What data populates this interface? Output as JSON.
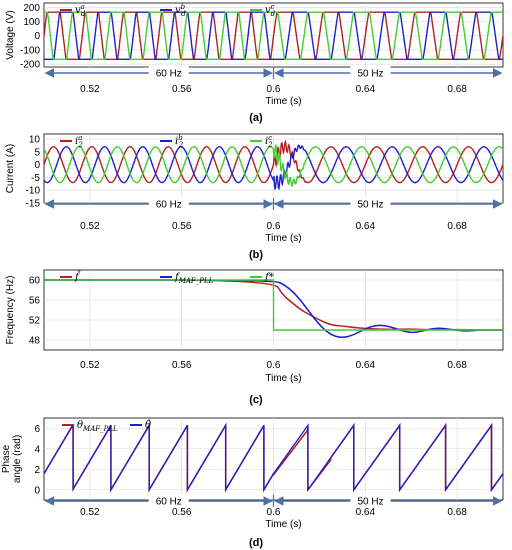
{
  "colors": {
    "phase_a": "#b22222",
    "phase_b": "#1f1fd0",
    "phase_c": "#3fcf2f",
    "arrow": "#4f6fa8",
    "grid": "#d9d9d9"
  },
  "chart_data": [
    {
      "type": "line",
      "panel_label": "(a)",
      "xlabel": "Time (s)",
      "ylabel": "Voltage (V)",
      "xlim": [
        0.5,
        0.7
      ],
      "ylim": [
        -220,
        230
      ],
      "xticks": [
        0.52,
        0.56,
        0.6,
        0.64,
        0.68
      ],
      "xtick_labels": [
        "0.52",
        "0.56",
        "0.6",
        "0.64",
        "0.68"
      ],
      "yticks": [
        -200,
        -100,
        0,
        100,
        200
      ],
      "ytick_labels": [
        "-200",
        "-100",
        "0",
        "100",
        "200"
      ],
      "grid": true,
      "legend_position": "top",
      "series": [
        {
          "name": "v_d^a",
          "color_key": "phase_a",
          "amplitude": 180,
          "phase_deg": 0,
          "waveform": "trapezoidal"
        },
        {
          "name": "v_d^b",
          "color_key": "phase_b",
          "amplitude": 180,
          "phase_deg": -120,
          "waveform": "trapezoidal"
        },
        {
          "name": "v_d^c",
          "color_key": "phase_c",
          "amplitude": 180,
          "phase_deg": 120,
          "waveform": "trapezoidal"
        }
      ],
      "frequency_step": {
        "t_switch": 0.6,
        "f_before": 60,
        "f_after": 50
      },
      "regions": [
        {
          "label": "60 Hz",
          "x_start": 0.5,
          "x_end": 0.6
        },
        {
          "label": "50 Hz",
          "x_start": 0.6,
          "x_end": 0.7
        }
      ]
    },
    {
      "type": "line",
      "panel_label": "(b)",
      "xlabel": "Time (s)",
      "ylabel": "Current (A)",
      "xlim": [
        0.5,
        0.7
      ],
      "ylim": [
        -15,
        12
      ],
      "xticks": [
        0.52,
        0.56,
        0.6,
        0.64,
        0.68
      ],
      "xtick_labels": [
        "0.52",
        "0.56",
        "0.6",
        "0.64",
        "0.68"
      ],
      "yticks": [
        -15,
        -10,
        -5,
        0,
        5,
        10
      ],
      "ytick_labels": [
        "-15",
        "-10",
        "-5",
        "0",
        "5",
        "10"
      ],
      "grid": true,
      "legend_position": "top",
      "series": [
        {
          "name": "i_2^a",
          "color_key": "phase_a",
          "amplitude": 7,
          "phase_deg": 0,
          "waveform": "sine"
        },
        {
          "name": "i_2^b",
          "color_key": "phase_b",
          "amplitude": 7,
          "phase_deg": -120,
          "waveform": "sine"
        },
        {
          "name": "i_2^c",
          "color_key": "phase_c",
          "amplitude": 7,
          "phase_deg": 120,
          "waveform": "sine"
        }
      ],
      "frequency_step": {
        "t_switch": 0.6,
        "f_before": 60,
        "f_after": 50
      },
      "transient": {
        "t_start": 0.6,
        "t_end": 0.615,
        "peak_amplitude": 10
      },
      "regions": [
        {
          "label": "60 Hz",
          "x_start": 0.5,
          "x_end": 0.6
        },
        {
          "label": "50 Hz",
          "x_start": 0.6,
          "x_end": 0.7
        }
      ]
    },
    {
      "type": "line",
      "panel_label": "(c)",
      "xlabel": "Time (s)",
      "ylabel": "Frequency (Hz)",
      "xlim": [
        0.5,
        0.7
      ],
      "ylim": [
        46,
        62
      ],
      "xticks": [
        0.52,
        0.56,
        0.6,
        0.64,
        0.68
      ],
      "xtick_labels": [
        "0.52",
        "0.56",
        "0.6",
        "0.64",
        "0.68"
      ],
      "yticks": [
        48,
        52,
        56,
        60
      ],
      "ytick_labels": [
        "48",
        "52",
        "56",
        "60"
      ],
      "grid": true,
      "legend_position": "top",
      "series": [
        {
          "name": "f̂",
          "color_key": "phase_a",
          "x": [
            0.5,
            0.6,
            0.604,
            0.608,
            0.612,
            0.616,
            0.62,
            0.625,
            0.63,
            0.635,
            0.64,
            0.65,
            0.66,
            0.67,
            0.68,
            0.69,
            0.7
          ],
          "y": [
            60,
            60,
            57,
            55.5,
            54,
            53,
            52,
            51,
            50.8,
            50.5,
            50.3,
            50.1,
            50.2,
            50,
            50.1,
            50,
            50
          ]
        },
        {
          "name": "f_MAF_PLL",
          "color_key": "phase_b",
          "x": [
            0.5,
            0.6,
            0.605,
            0.61,
            0.615,
            0.62,
            0.625,
            0.63,
            0.635,
            0.64,
            0.645,
            0.65,
            0.655,
            0.66,
            0.665,
            0.67,
            0.675,
            0.68,
            0.685,
            0.69,
            0.7
          ],
          "y": [
            60,
            60,
            59,
            57,
            54,
            51,
            49,
            48.4,
            49,
            50.3,
            51,
            50.8,
            50,
            49.4,
            49.8,
            50.4,
            50.3,
            49.9,
            49.8,
            50,
            50
          ]
        },
        {
          "name": "f*",
          "color_key": "phase_c",
          "x": [
            0.5,
            0.6,
            0.6,
            0.7
          ],
          "y": [
            60,
            60,
            50,
            50
          ]
        }
      ]
    },
    {
      "type": "line",
      "panel_label": "(d)",
      "xlabel": "Time (s)",
      "ylabel_lines": [
        "Phase",
        "angle (rad)"
      ],
      "xlim": [
        0.5,
        0.7
      ],
      "ylim": [
        -1,
        7
      ],
      "xticks": [
        0.52,
        0.56,
        0.6,
        0.64,
        0.68
      ],
      "xtick_labels": [
        "0.52",
        "0.56",
        "0.6",
        "0.64",
        "0.68"
      ],
      "yticks": [
        0,
        2,
        4,
        6
      ],
      "ytick_labels": [
        "0",
        "2",
        "4",
        "6"
      ],
      "grid": true,
      "legend_position": "top",
      "series": [
        {
          "name": "θ_MAF_PLL",
          "color_key": "phase_a",
          "waveform": "sawtooth",
          "max": 6.2832
        },
        {
          "name": "θ̂",
          "color_key": "phase_b",
          "waveform": "sawtooth",
          "max": 6.2832
        }
      ],
      "frequency_step": {
        "t_switch": 0.6,
        "f_before": 60,
        "f_after": 50
      },
      "regions": [
        {
          "label": "60 Hz",
          "x_start": 0.5,
          "x_end": 0.6
        },
        {
          "label": "50 Hz",
          "x_start": 0.6,
          "x_end": 0.7
        }
      ]
    }
  ]
}
